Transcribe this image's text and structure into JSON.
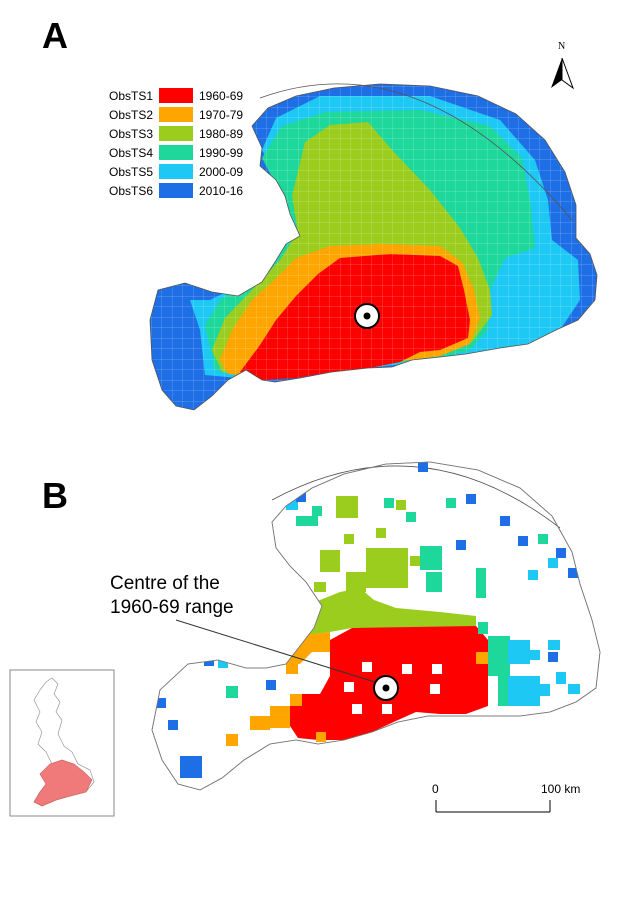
{
  "panels": {
    "a": {
      "letter": "A"
    },
    "b": {
      "letter": "B"
    }
  },
  "legend": {
    "items": [
      {
        "code": "ObsTS1",
        "period": "1960-69",
        "color": "#ff0000"
      },
      {
        "code": "ObsTS2",
        "period": "1970-79",
        "color": "#ffa500"
      },
      {
        "code": "ObsTS3",
        "period": "1980-89",
        "color": "#9acd1e"
      },
      {
        "code": "ObsTS4",
        "period": "1990-99",
        "color": "#1ed79a"
      },
      {
        "code": "ObsTS5",
        "period": "2000-09",
        "color": "#1ec8f5"
      },
      {
        "code": "ObsTS6",
        "period": "2010-16",
        "color": "#1e6ee6"
      }
    ]
  },
  "north_arrow": {
    "letter": "N"
  },
  "annotation": {
    "line1": "Centre of the",
    "line2": "1960-69 range"
  },
  "scale_bar": {
    "start_label": "0",
    "end_label": "100 km"
  },
  "inset": {
    "highlight_color": "#f07a7a"
  }
}
